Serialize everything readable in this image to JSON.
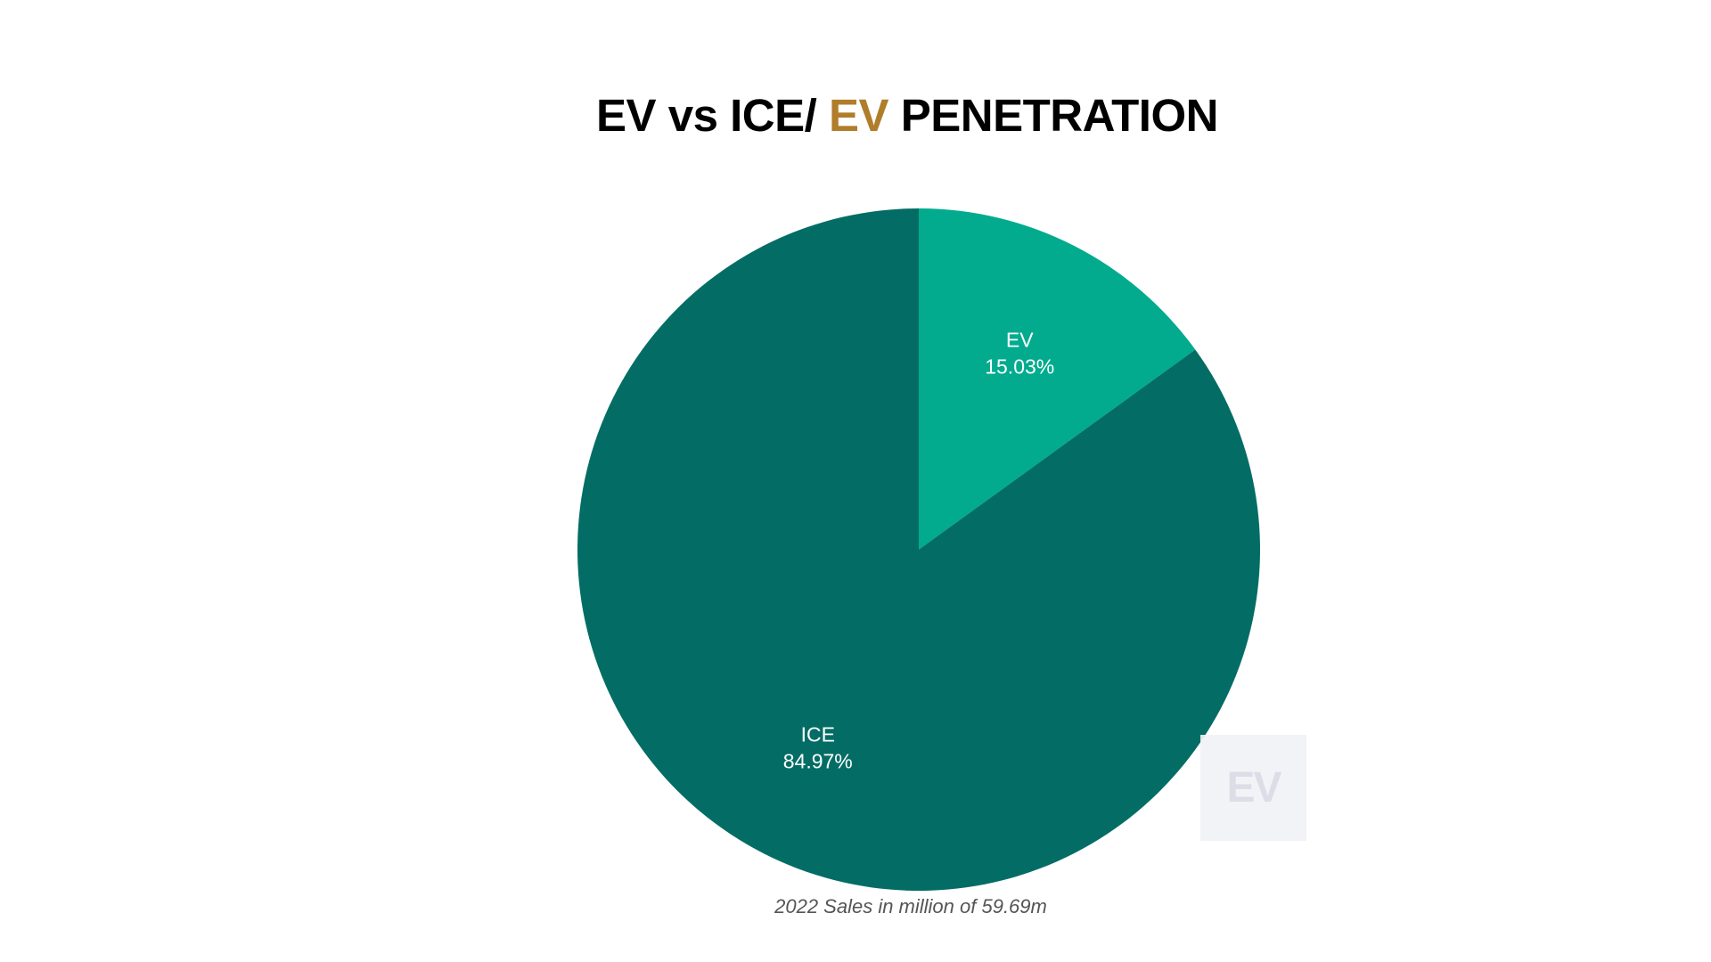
{
  "title": {
    "part1": "EV vs ICE/ ",
    "accent": "EV",
    "part2": " PENETRATION"
  },
  "caption": "2022 Sales in million of 59.69m",
  "watermark": "EV",
  "colors": {
    "ev": "#02ab8e",
    "ice": "#036d65",
    "accent": "#b07d2a"
  },
  "chart_data": {
    "type": "pie",
    "title": "EV vs ICE/ EV PENETRATION",
    "slices": [
      {
        "label": "EV",
        "value": 15.03,
        "display": "15.03%",
        "color": "#02ab8e"
      },
      {
        "label": "ICE",
        "value": 84.97,
        "display": "84.97%",
        "color": "#036d65"
      }
    ],
    "caption": "2022 Sales in million of 59.69m"
  }
}
